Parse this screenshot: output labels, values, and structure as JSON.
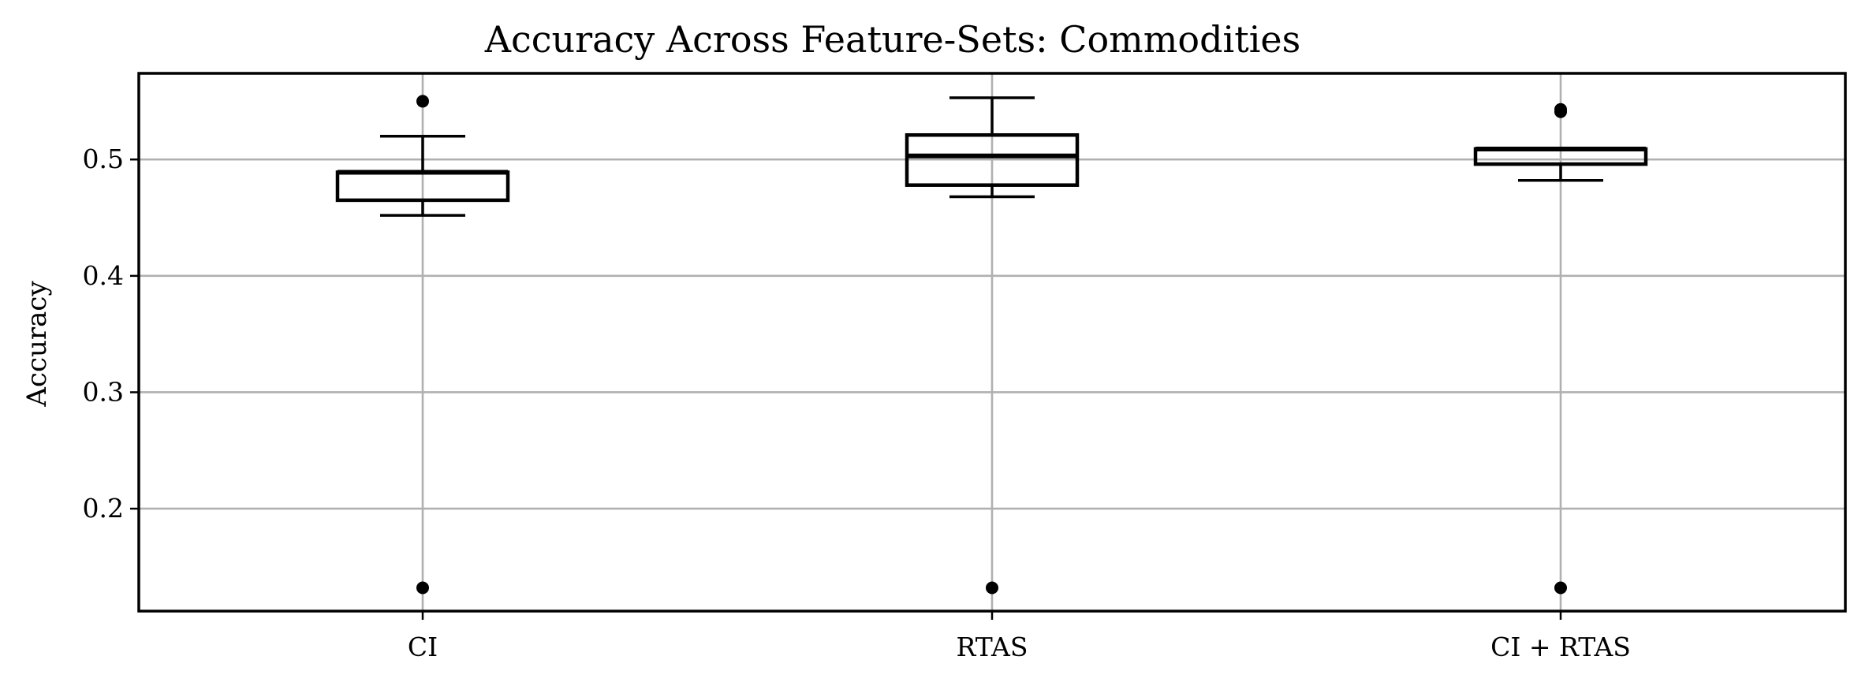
{
  "chart_data": {
    "type": "box",
    "title": "Accuracy Across Feature-Sets: Commodities",
    "xlabel": "",
    "ylabel": "Accuracy",
    "categories": [
      "CI",
      "RTAS",
      "CI + RTAS"
    ],
    "ylim": [
      0.112,
      0.574
    ],
    "yticks": [
      0.2,
      0.3,
      0.4,
      0.5
    ],
    "ytick_labels": [
      "0.2",
      "0.3",
      "0.4",
      "0.5"
    ],
    "grid": true,
    "boxes": [
      {
        "category": "CI",
        "whisker_low": 0.452,
        "q1": 0.465,
        "median": 0.489,
        "q3": 0.489,
        "whisker_high": 0.52,
        "fliers": [
          0.55,
          0.132
        ]
      },
      {
        "category": "RTAS",
        "whisker_low": 0.468,
        "q1": 0.478,
        "median": 0.503,
        "q3": 0.521,
        "whisker_high": 0.553,
        "fliers": [
          0.132
        ]
      },
      {
        "category": "CI + RTAS",
        "whisker_low": 0.482,
        "q1": 0.496,
        "median": 0.509,
        "q3": 0.509,
        "whisker_high": 0.509,
        "fliers": [
          0.543,
          0.541,
          0.132
        ]
      }
    ]
  }
}
